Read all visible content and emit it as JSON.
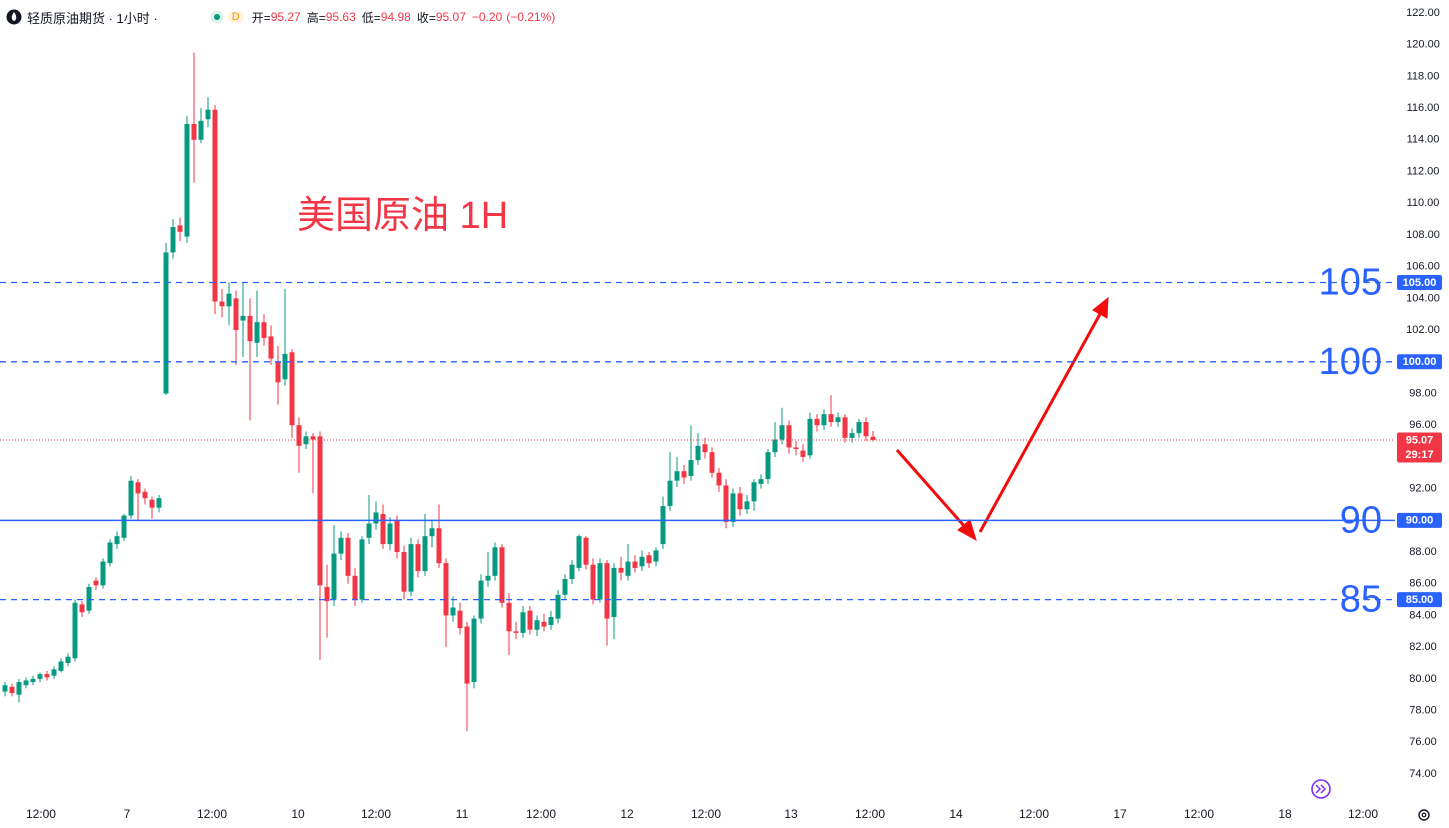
{
  "header": {
    "title": "轻质原油期货 · 1小时 ·",
    "badge": "D",
    "open_label": "开=",
    "high_label": "高=",
    "low_label": "低=",
    "close_label": "收=",
    "change": "−0.20",
    "change_pct": "(−0.21%)"
  },
  "chart_data": {
    "type": "candlestick",
    "annotation": "美国原油 1H",
    "up_color": "#089981",
    "down_color": "#f23645",
    "level_color": "#2962ff",
    "open": [
      79.2,
      79.5,
      79.0,
      79.6,
      79.8,
      80.0,
      80.3,
      80.2,
      80.5,
      81.0,
      81.3,
      84.7,
      84.3,
      86.2,
      85.9,
      87.3,
      88.5,
      88.9,
      90.3,
      92.4,
      91.8,
      91.3,
      90.8,
      98.0,
      106.9,
      108.6,
      107.9,
      115.0,
      114.0,
      115.3,
      115.9,
      103.8,
      103.5,
      104.0,
      102.6,
      102.9,
      101.2,
      102.5,
      101.6,
      100.0,
      98.9,
      100.6,
      96.0,
      94.8,
      95.3,
      95.3,
      85.8,
      85.0,
      87.9,
      88.9,
      86.5,
      85.0,
      88.9,
      89.8,
      90.4,
      88.5,
      90.0,
      88.0,
      85.5,
      88.5,
      86.8,
      89.0,
      89.5,
      87.3,
      84.0,
      84.3,
      83.3,
      79.8,
      83.8,
      86.2,
      86.5,
      88.3,
      84.8,
      83.0,
      82.9,
      84.3,
      83.1,
      83.6,
      83.4,
      83.8,
      85.3,
      86.3,
      87.0,
      88.9,
      87.2,
      85.0,
      87.3,
      83.9,
      87.0,
      86.5,
      87.4,
      87.1,
      87.8,
      87.4,
      88.5,
      90.9,
      92.5,
      93.1,
      92.8,
      93.8,
      94.8,
      94.3,
      93.0,
      92.2,
      89.9,
      91.7,
      90.7,
      91.2,
      92.3,
      92.6,
      94.3,
      95.1,
      96.0,
      94.6,
      94.4,
      94.1,
      96.4,
      96.0,
      96.7,
      96.2,
      96.5,
      95.2,
      95.5,
      96.2,
      95.27
    ],
    "high": [
      79.8,
      79.7,
      80.0,
      80.1,
      80.2,
      80.4,
      80.5,
      80.8,
      81.3,
      81.6,
      85.0,
      84.9,
      86.0,
      86.4,
      87.6,
      88.8,
      89.3,
      90.4,
      92.8,
      92.6,
      92.0,
      91.5,
      91.6,
      107.5,
      109.0,
      109.1,
      115.5,
      119.5,
      116.0,
      116.7,
      116.2,
      104.6,
      105.0,
      104.5,
      105.0,
      104.0,
      104.5,
      103.0,
      102.3,
      101.0,
      104.6,
      100.8,
      96.5,
      95.6,
      95.5,
      95.6,
      87.2,
      89.7,
      89.3,
      89.2,
      87.0,
      89.0,
      91.6,
      91.2,
      91.0,
      90.2,
      90.3,
      88.4,
      88.9,
      88.8,
      90.4,
      90.0,
      91.0,
      87.6,
      85.2,
      84.8,
      83.6,
      84.0,
      86.6,
      88.0,
      88.6,
      88.5,
      85.4,
      83.6,
      84.6,
      84.6,
      84.0,
      84.1,
      84.3,
      85.6,
      86.6,
      87.5,
      89.1,
      89.0,
      87.6,
      87.6,
      87.5,
      87.3,
      87.7,
      88.5,
      87.8,
      88.1,
      88.0,
      88.3,
      91.5,
      94.3,
      94.0,
      93.5,
      96.0,
      95.5,
      95.2,
      94.6,
      93.3,
      92.6,
      92.0,
      92.1,
      91.6,
      92.6,
      92.9,
      94.5,
      96.2,
      97.1,
      96.3,
      95.0,
      94.8,
      96.8,
      96.7,
      97.0,
      97.9,
      96.8,
      96.7,
      95.8,
      96.4,
      96.5,
      95.63
    ],
    "low": [
      78.9,
      78.9,
      78.5,
      79.4,
      79.6,
      79.8,
      79.9,
      80.0,
      80.4,
      80.8,
      81.1,
      83.9,
      84.1,
      85.6,
      85.7,
      87.1,
      88.2,
      88.7,
      90.1,
      90.0,
      91.0,
      90.1,
      90.5,
      97.9,
      106.5,
      107.6,
      107.5,
      111.3,
      113.8,
      114.8,
      103.0,
      102.8,
      102.3,
      99.8,
      100.3,
      96.3,
      100.3,
      101.0,
      99.8,
      97.3,
      98.5,
      95.2,
      93.0,
      94.5,
      91.7,
      81.2,
      82.6,
      84.6,
      87.5,
      86.0,
      84.6,
      84.8,
      88.5,
      89.4,
      88.2,
      88.1,
      87.6,
      85.0,
      85.2,
      86.4,
      86.5,
      88.3,
      87.0,
      82.0,
      83.6,
      82.8,
      76.7,
      79.4,
      83.5,
      85.8,
      86.2,
      84.5,
      81.5,
      82.5,
      82.6,
      82.8,
      82.7,
      83.0,
      83.1,
      83.5,
      85.0,
      86.0,
      86.8,
      86.9,
      84.7,
      84.8,
      82.1,
      82.5,
      86.2,
      86.2,
      86.7,
      86.8,
      87.0,
      87.1,
      88.2,
      90.6,
      92.1,
      92.3,
      92.5,
      93.5,
      93.9,
      92.7,
      91.8,
      89.5,
      89.6,
      90.3,
      90.4,
      90.6,
      92.0,
      92.3,
      94.0,
      94.8,
      94.2,
      94.1,
      93.7,
      93.9,
      95.6,
      95.7,
      95.9,
      95.9,
      94.9,
      94.9,
      95.2,
      95.0,
      94.98
    ],
    "close": [
      79.6,
      79.1,
      79.8,
      79.9,
      80.0,
      80.3,
      80.1,
      80.6,
      81.1,
      81.4,
      84.8,
      84.2,
      85.8,
      85.9,
      87.4,
      88.6,
      89.0,
      90.3,
      92.5,
      91.7,
      91.4,
      90.8,
      91.4,
      106.9,
      108.5,
      108.2,
      115.0,
      114.0,
      115.2,
      115.9,
      103.8,
      103.5,
      104.3,
      102.0,
      102.9,
      101.3,
      102.5,
      101.5,
      100.2,
      98.7,
      100.5,
      96.0,
      94.7,
      95.3,
      95.1,
      85.9,
      84.9,
      87.9,
      88.9,
      86.5,
      85.0,
      88.8,
      89.8,
      90.5,
      88.5,
      89.8,
      88.0,
      85.5,
      88.5,
      86.8,
      89.0,
      89.5,
      87.3,
      84.0,
      84.5,
      83.2,
      79.7,
      83.8,
      86.2,
      86.5,
      88.3,
      84.8,
      83.0,
      82.9,
      84.2,
      83.1,
      83.7,
      83.3,
      83.9,
      85.3,
      86.3,
      87.2,
      89.0,
      87.2,
      85.0,
      87.3,
      83.8,
      87.0,
      86.7,
      87.4,
      87.0,
      87.7,
      87.3,
      88.1,
      90.9,
      92.5,
      93.1,
      92.7,
      93.8,
      94.7,
      94.3,
      93.0,
      92.2,
      89.9,
      91.7,
      90.7,
      91.2,
      92.4,
      92.6,
      94.3,
      95.1,
      96.0,
      94.6,
      94.5,
      94.0,
      96.4,
      96.0,
      96.7,
      96.2,
      96.5,
      95.2,
      95.5,
      96.2,
      95.3,
      95.07
    ],
    "xlim": [
      -0.7143,
      198.57
    ],
    "xticks": [
      {
        "value": 5.14,
        "label": "12:00"
      },
      {
        "value": 17.43,
        "label": "7"
      },
      {
        "value": 29.57,
        "label": "12:00"
      },
      {
        "value": 41.86,
        "label": "10"
      },
      {
        "value": 53,
        "label": "12:00"
      },
      {
        "value": 65.29,
        "label": "11"
      },
      {
        "value": 76.57,
        "label": "12:00"
      },
      {
        "value": 88.86,
        "label": "12"
      },
      {
        "value": 100.14,
        "label": "12:00"
      },
      {
        "value": 112.29,
        "label": "13"
      },
      {
        "value": 123.57,
        "label": "12:00"
      },
      {
        "value": 135.86,
        "label": "14"
      },
      {
        "value": 147,
        "label": "12:00"
      },
      {
        "value": 159.29,
        "label": "17"
      },
      {
        "value": 170.57,
        "label": "12:00"
      },
      {
        "value": 182.86,
        "label": "18"
      },
      {
        "value": 194,
        "label": "12:00"
      }
    ],
    "ylim": [
      72.36,
      122.82
    ],
    "yticks": [
      {
        "value": 74,
        "label": "74.00"
      },
      {
        "value": 76,
        "label": "76.00"
      },
      {
        "value": 78,
        "label": "78.00"
      },
      {
        "value": 80,
        "label": "80.00"
      },
      {
        "value": 82,
        "label": "82.00"
      },
      {
        "value": 84,
        "label": "84.00"
      },
      {
        "value": 86,
        "label": "86.00"
      },
      {
        "value": 88,
        "label": "88.00"
      },
      {
        "value": 92,
        "label": "92.00"
      },
      {
        "value": 96,
        "label": "96.00"
      },
      {
        "value": 98,
        "label": "98.00"
      },
      {
        "value": 102,
        "label": "102.00"
      },
      {
        "value": 104,
        "label": "104.00"
      },
      {
        "value": 106,
        "label": "106.00"
      },
      {
        "value": 108,
        "label": "108.00"
      },
      {
        "value": 110,
        "label": "110.00"
      },
      {
        "value": 112,
        "label": "112.00"
      },
      {
        "value": 114,
        "label": "114.00"
      },
      {
        "value": 116,
        "label": "116.00"
      },
      {
        "value": 118,
        "label": "118.00"
      },
      {
        "value": 120,
        "label": "120.00"
      },
      {
        "value": 122,
        "label": "122.00"
      }
    ],
    "levels": [
      {
        "value": 105,
        "tag": "105.00",
        "style": "dashed"
      },
      {
        "value": 100,
        "tag": "100.00",
        "style": "dashed"
      },
      {
        "value": 90,
        "tag": "90.00",
        "style": "solid"
      },
      {
        "value": 85,
        "tag": "85.00",
        "style": "dashed"
      }
    ],
    "last_price": {
      "value": 95.07,
      "countdown": "29:17"
    }
  }
}
